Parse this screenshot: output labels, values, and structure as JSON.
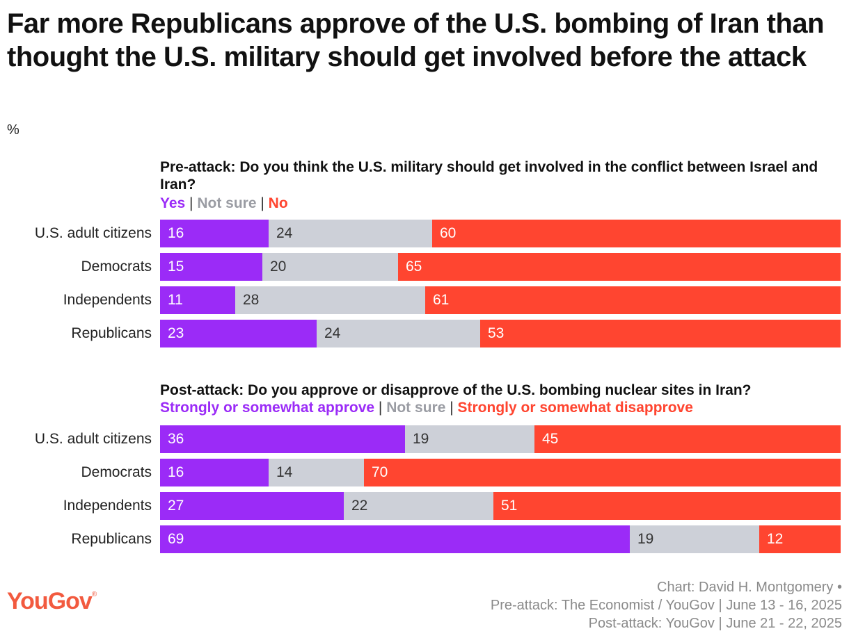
{
  "title": "Far more Republicans approve of the U.S. bombing of Iran than thought the U.S. military should get involved before the attack",
  "unit": "%",
  "colors": {
    "positive": "#9b2bf7",
    "neutral": "#cdd0d8",
    "negative": "#ff4530",
    "positive_label": "#ffffff",
    "neutral_label": "#333333",
    "negative_label": "#ffffff"
  },
  "legend_separator": "|",
  "chart_data": [
    {
      "type": "bar",
      "stacked": true,
      "orientation": "horizontal",
      "title": "Pre-attack: Do you think the U.S. military should get involved in the conflict between Israel and Iran?",
      "categories": [
        "U.S. adult citizens",
        "Democrats",
        "Independents",
        "Republicans"
      ],
      "series": [
        {
          "name": "Yes",
          "values": [
            16,
            15,
            11,
            23
          ]
        },
        {
          "name": "Not sure",
          "values": [
            24,
            20,
            28,
            24
          ]
        },
        {
          "name": "No",
          "values": [
            60,
            65,
            61,
            53
          ]
        }
      ],
      "xlim": [
        0,
        100
      ]
    },
    {
      "type": "bar",
      "stacked": true,
      "orientation": "horizontal",
      "title": "Post-attack: Do you approve or disapprove of the U.S. bombing nuclear sites in Iran?",
      "categories": [
        "U.S. adult citizens",
        "Democrats",
        "Independents",
        "Republicans"
      ],
      "series": [
        {
          "name": "Strongly or somewhat approve",
          "values": [
            36,
            16,
            27,
            69
          ]
        },
        {
          "name": "Not sure",
          "values": [
            19,
            14,
            22,
            19
          ]
        },
        {
          "name": "Strongly or somewhat disapprove",
          "values": [
            45,
            70,
            51,
            12
          ]
        }
      ],
      "xlim": [
        0,
        100
      ]
    }
  ],
  "logo": {
    "text": "YouGov",
    "mark": "®"
  },
  "credits": [
    "Chart: David H. Montgomery •",
    "Pre-attack: The Economist / YouGov | June 13 - 16, 2025",
    "Post-attack: YouGov | June 21 - 22, 2025"
  ]
}
